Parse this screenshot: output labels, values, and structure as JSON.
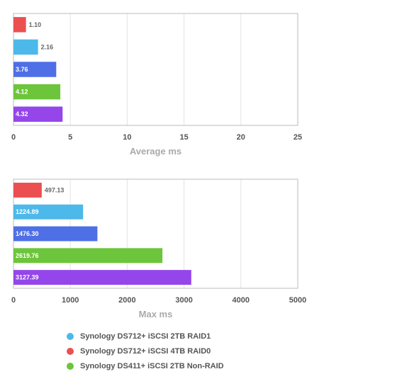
{
  "chart_data": [
    {
      "type": "bar",
      "orientation": "horizontal",
      "xlabel": "Average ms",
      "xlim": [
        0,
        25
      ],
      "ticks": [
        "0",
        "5",
        "10",
        "15",
        "20",
        "25"
      ],
      "grid": true,
      "bars": [
        {
          "value": 1.1,
          "label": "1.10",
          "color": "#ec4f50"
        },
        {
          "value": 2.16,
          "label": "2.16",
          "color": "#4db8ea"
        },
        {
          "value": 3.76,
          "label": "3.76",
          "color": "#4f6fe6"
        },
        {
          "value": 4.12,
          "label": "4.12",
          "color": "#6cc53a"
        },
        {
          "value": 4.32,
          "label": "4.32",
          "color": "#9446ea"
        }
      ]
    },
    {
      "type": "bar",
      "orientation": "horizontal",
      "xlabel": "Max ms",
      "xlim": [
        0,
        5000
      ],
      "ticks": [
        "0",
        "1000",
        "2000",
        "3000",
        "4000",
        "5000"
      ],
      "grid": true,
      "bars": [
        {
          "value": 497.13,
          "label": "497.13",
          "color": "#ec4f50"
        },
        {
          "value": 1224.89,
          "label": "1224.89",
          "color": "#4db8ea"
        },
        {
          "value": 1476.3,
          "label": "1476.30",
          "color": "#4f6fe6"
        },
        {
          "value": 2619.76,
          "label": "2619.76",
          "color": "#6cc53a"
        },
        {
          "value": 3127.39,
          "label": "3127.39",
          "color": "#9446ea"
        }
      ]
    }
  ],
  "legend": {
    "items": [
      {
        "label": "Synology DS712+ iSCSI 2TB RAID1",
        "color": "#4db8ea"
      },
      {
        "label": "Synology DS712+ iSCSI 4TB RAID0",
        "color": "#ec4f50"
      },
      {
        "label": "Synology DS411+ iSCSI 2TB Non-RAID",
        "color": "#6cc53a"
      }
    ]
  }
}
